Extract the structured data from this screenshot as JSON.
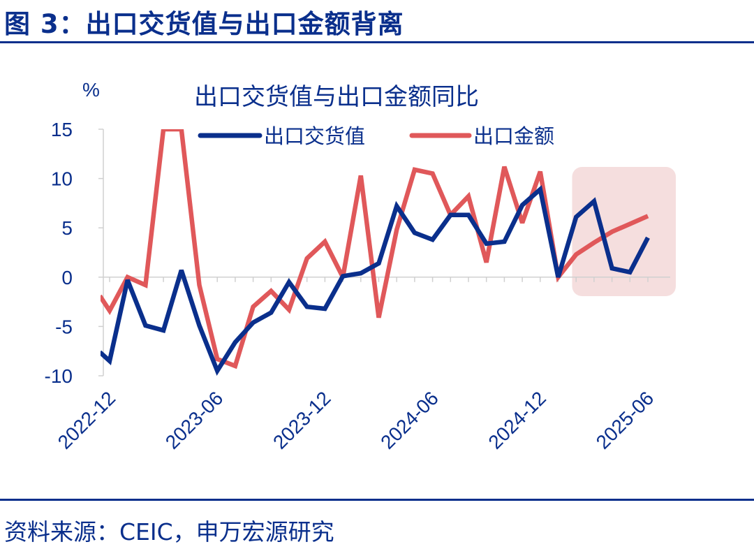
{
  "figure": {
    "title": "图 3：出口交货值与出口金额背离",
    "source": "资料来源：CEIC，申万宏源研究"
  },
  "colors": {
    "navy": "#0a2f8c",
    "red": "#e0585a",
    "highlight": "#f5dede"
  },
  "chart_data": {
    "type": "line",
    "title": "出口交货值与出口金额同比",
    "unit": "%",
    "ylim": [
      -10,
      15
    ],
    "y_ticks": [
      15,
      10,
      5,
      0,
      -5,
      -10
    ],
    "x_tick_labels": [
      "2022-12",
      "2023-06",
      "2023-12",
      "2024-06",
      "2024-12",
      "2025-06"
    ],
    "x_tick_indices": [
      0,
      6,
      12,
      18,
      24,
      30
    ],
    "x": [
      "2022-12",
      "2023-01",
      "2023-02",
      "2023-03",
      "2023-04",
      "2023-05",
      "2023-06",
      "2023-07",
      "2023-08",
      "2023-09",
      "2023-10",
      "2023-11",
      "2023-12",
      "2024-01",
      "2024-02",
      "2024-03",
      "2024-04",
      "2024-05",
      "2024-06",
      "2024-07",
      "2024-08",
      "2024-09",
      "2024-10",
      "2024-11",
      "2024-12",
      "2025-01",
      "2025-02",
      "2025-03",
      "2025-04",
      "2025-05",
      "2025-06"
    ],
    "pre_start_values": {
      "出口交货值": -7.6,
      "出口金额": -1.9
    },
    "series": [
      {
        "name": "出口交货值",
        "color": "#0a2f8c",
        "values": [
          -8.5,
          -0.3,
          -4.9,
          -5.4,
          0.7,
          -4.9,
          -9.5,
          -6.6,
          -4.6,
          -3.6,
          -0.5,
          -3.0,
          -3.2,
          0.1,
          0.4,
          1.4,
          7.2,
          4.5,
          3.8,
          6.3,
          6.3,
          3.4,
          3.6,
          7.3,
          8.9,
          0.0,
          6.1,
          7.7,
          0.9,
          0.5,
          4.0
        ]
      },
      {
        "name": "出口金额",
        "color": "#e0585a",
        "values": [
          -3.4,
          0.0,
          -0.8,
          15.0,
          15.0,
          -0.8,
          -8.3,
          -9.0,
          -3.0,
          -1.4,
          -3.3,
          1.9,
          3.6,
          0.0,
          10.3,
          -4.1,
          4.8,
          10.9,
          10.5,
          6.3,
          8.2,
          1.5,
          11.2,
          5.5,
          10.7,
          0.0,
          2.3,
          3.5,
          4.6,
          5.4,
          6.2
        ]
      }
    ],
    "highlight_range": [
      "2025-01",
      "2025-06"
    ]
  }
}
